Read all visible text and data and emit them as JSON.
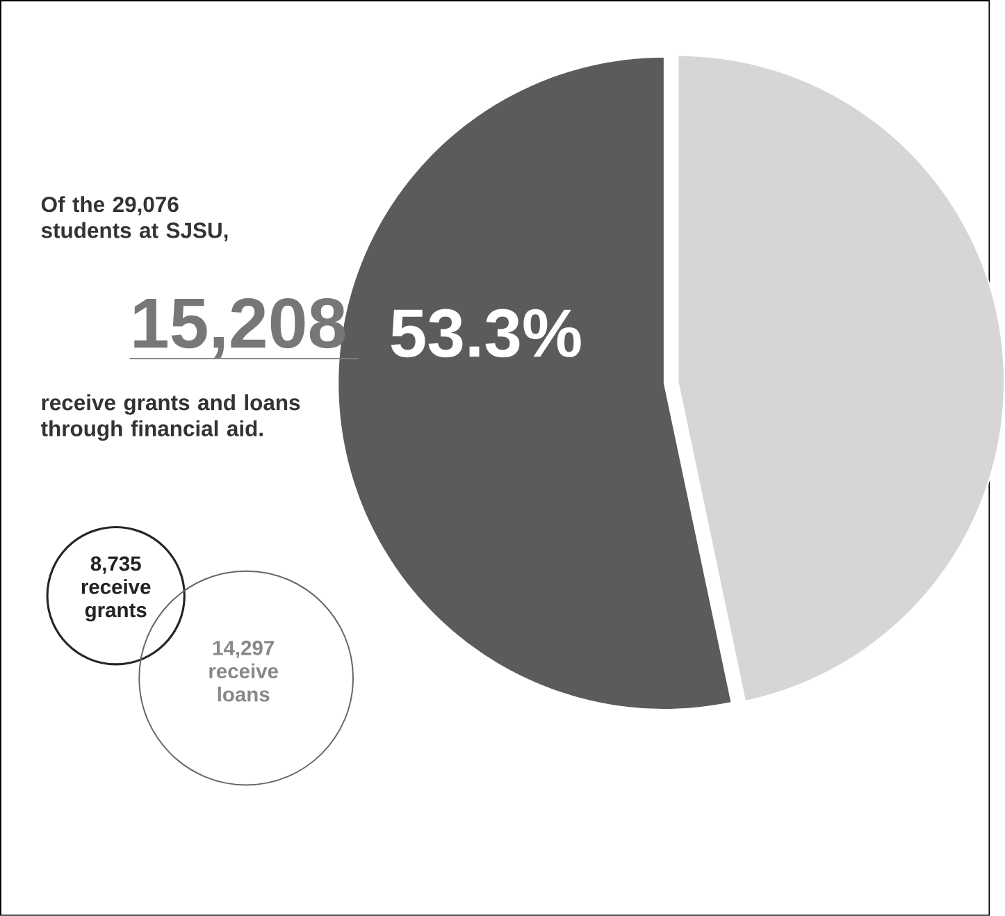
{
  "chart_data": {
    "type": "pie",
    "categories": [
      null,
      null
    ],
    "values": [
      53.3,
      46.7
    ],
    "colors": [
      "#5b5b5b",
      "#d6d6d6"
    ],
    "value_labels": [
      "53.3%",
      null
    ],
    "annotations": [
      "Of the 29,076 students at SJSU,",
      "15,208",
      "receive grants and loans through financial aid.",
      "8,735 receive grants",
      "14,297 receive loans"
    ]
  }
}
